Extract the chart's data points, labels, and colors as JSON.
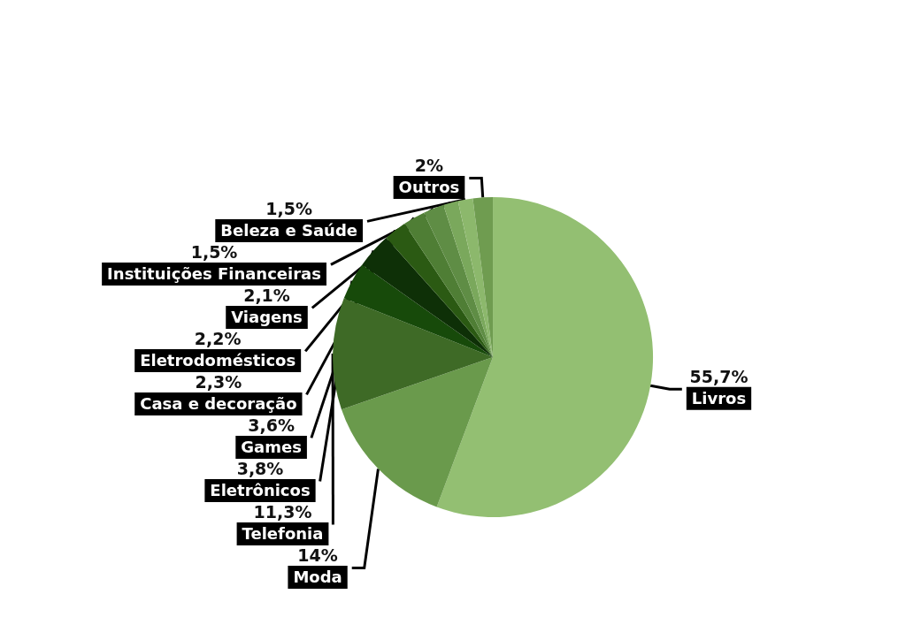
{
  "chart_data": {
    "type": "pie",
    "categories": [
      "Livros",
      "Moda",
      "Telefonia",
      "Eletrônicos",
      "Games",
      "Casa e decoração",
      "Eletrodomésticos",
      "Viagens",
      "Instituições Financeiras",
      "Beleza e Saúde",
      "Outros"
    ],
    "values": [
      55.7,
      14,
      11.3,
      3.8,
      3.6,
      2.3,
      2.2,
      2.1,
      1.5,
      1.5,
      2
    ],
    "value_labels": [
      "55,7%",
      "14%",
      "11,3%",
      "3,8%",
      "3,6%",
      "2,3%",
      "2,2%",
      "2,1%",
      "1,5%",
      "1,5%",
      "2%"
    ],
    "colors": [
      "#93bf72",
      "#6a9a4c",
      "#3e6a26",
      "#174a0a",
      "#0e3007",
      "#2b5a13",
      "#4f7e35",
      "#5f8d45",
      "#7aa85c",
      "#8cb86c",
      "#6f9c50"
    ],
    "legend": false
  }
}
